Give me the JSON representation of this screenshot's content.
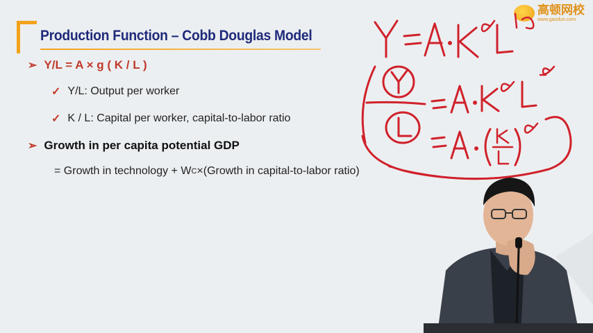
{
  "slide": {
    "title": "Production Function – Cobb Douglas Model",
    "bullets": [
      {
        "text": "Y/L = A × g ( K / L )"
      },
      {
        "text": "Y/L: Output per worker"
      },
      {
        "text": "K / L: Capital per worker, capital-to-labor ratio"
      },
      {
        "text": "Growth in per capita potential GDP"
      }
    ],
    "equation": {
      "prefix": "= Growth in technology + W",
      "subscript": "C",
      "suffix": "×(Growth in capital-to-labor ratio)"
    }
  },
  "logo": {
    "cn": "高顿网校",
    "url": "www.gaodun.com"
  },
  "handwriting": {
    "color": "#d0212b"
  }
}
